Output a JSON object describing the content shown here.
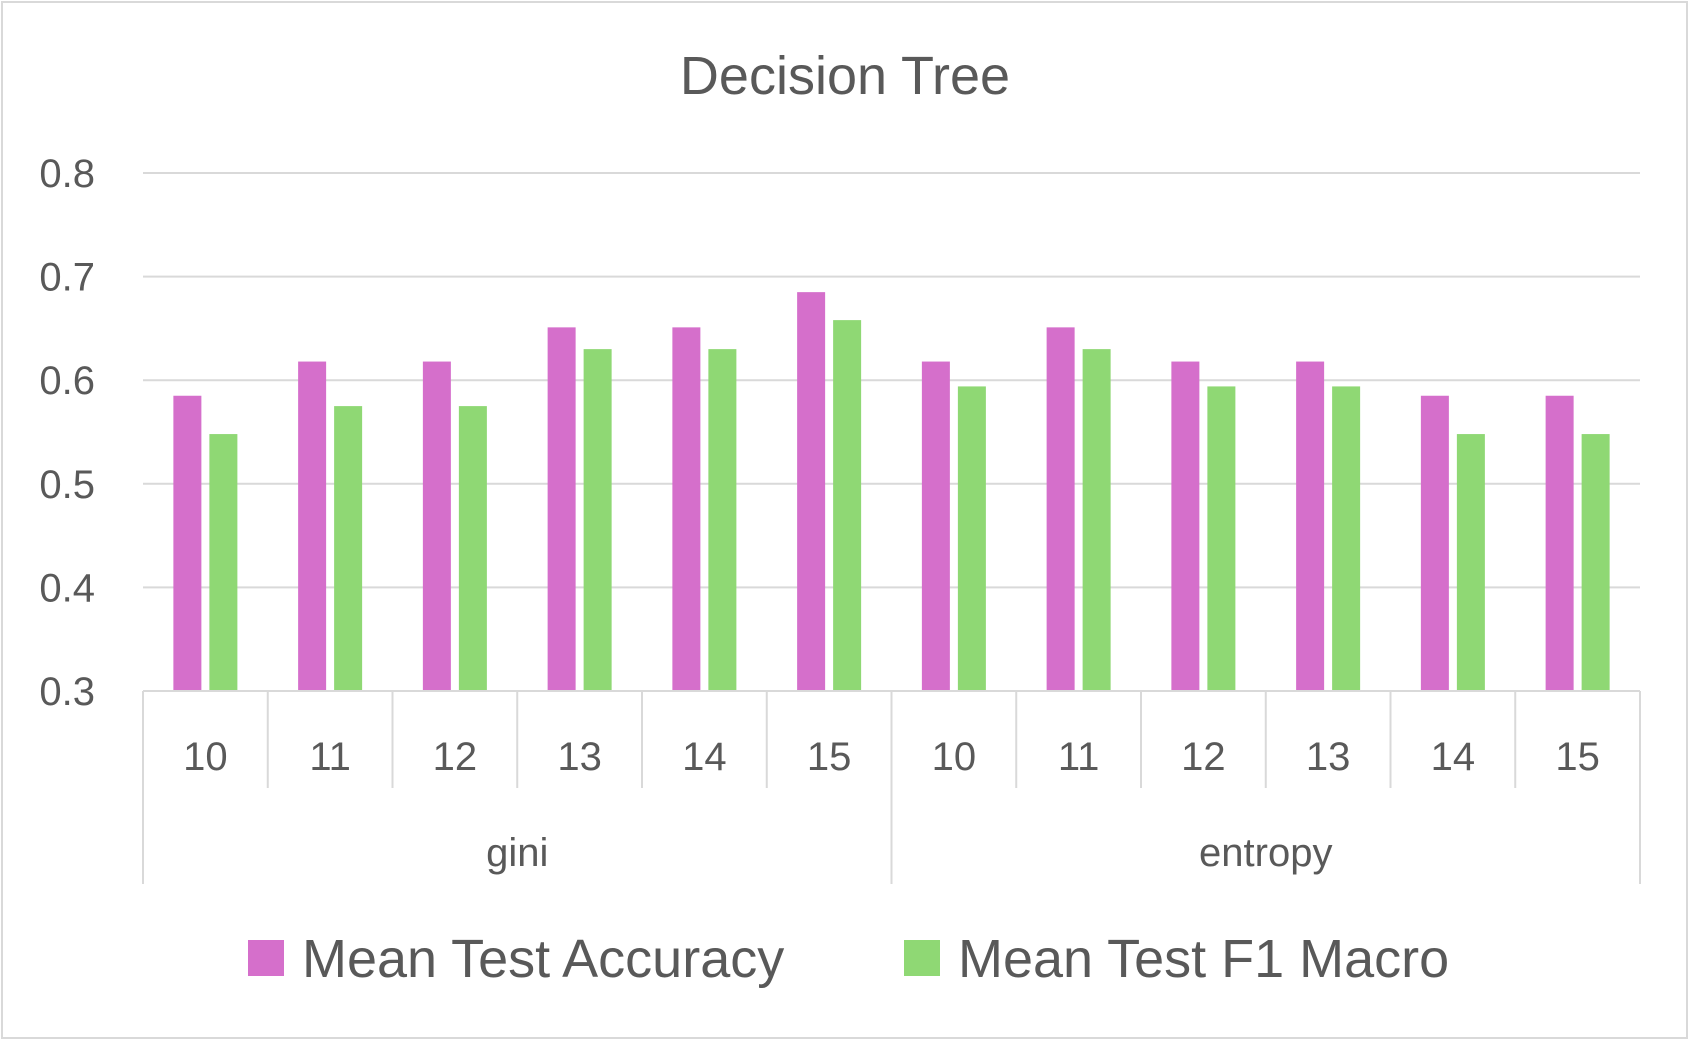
{
  "chart_data": {
    "type": "bar",
    "title": "Decision Tree",
    "xlabel": "",
    "ylabel": "",
    "ylim": [
      0.3,
      0.8
    ],
    "yticks": [
      "0.3",
      "0.4",
      "0.5",
      "0.6",
      "0.7",
      "0.8"
    ],
    "grid": true,
    "legend_position": "bottom",
    "groups": [
      {
        "label": "gini",
        "categories": [
          "10",
          "11",
          "12",
          "13",
          "14",
          "15"
        ]
      },
      {
        "label": "entropy",
        "categories": [
          "10",
          "11",
          "12",
          "13",
          "14",
          "15"
        ]
      }
    ],
    "series": [
      {
        "name": "Mean Test Accuracy",
        "color": "#d56fcb",
        "values": [
          0.585,
          0.618,
          0.618,
          0.651,
          0.651,
          0.685,
          0.618,
          0.651,
          0.618,
          0.618,
          0.585,
          0.585
        ]
      },
      {
        "name": "Mean Test F1 Macro",
        "color": "#8fd874",
        "values": [
          0.548,
          0.575,
          0.575,
          0.63,
          0.63,
          0.658,
          0.594,
          0.63,
          0.594,
          0.594,
          0.548,
          0.548
        ]
      }
    ]
  }
}
